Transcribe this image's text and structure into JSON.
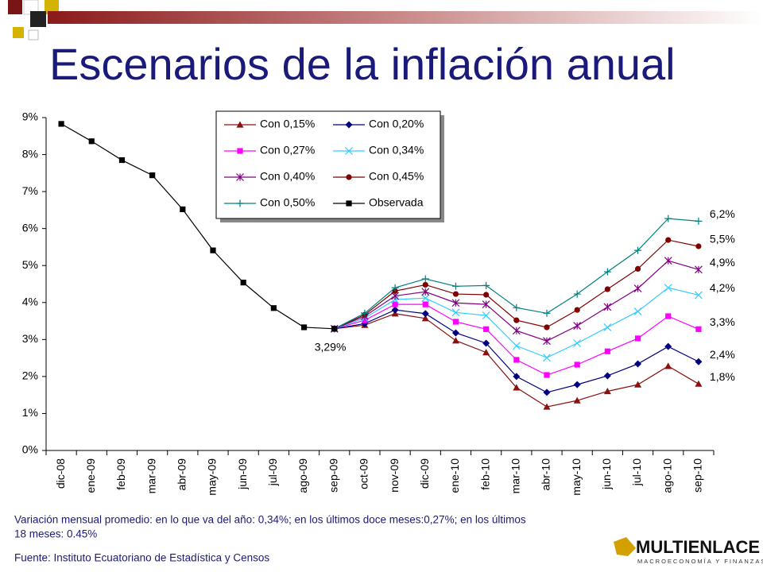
{
  "chart_data": {
    "type": "line",
    "title": "Escenarios de la inflación anual",
    "categories": [
      "dic-08",
      "ene-09",
      "feb-09",
      "mar-09",
      "abr-09",
      "may-09",
      "jun-09",
      "jul-09",
      "ago-09",
      "sep-09",
      "oct-09",
      "nov-09",
      "dic-09",
      "ene-10",
      "feb-10",
      "mar-10",
      "abr-10",
      "may-10",
      "jun-10",
      "jul-10",
      "ago-10",
      "sep-10"
    ],
    "ylim": [
      0,
      9
    ],
    "yticks": [
      {
        "value": 0,
        "label": "0%"
      },
      {
        "value": 1,
        "label": "1%"
      },
      {
        "value": 2,
        "label": "2%"
      },
      {
        "value": 3,
        "label": "3%"
      },
      {
        "value": 4,
        "label": "4%"
      },
      {
        "value": 5,
        "label": "5%"
      },
      {
        "value": 6,
        "label": "6%"
      },
      {
        "value": 7,
        "label": "7%"
      },
      {
        "value": 8,
        "label": "8%"
      },
      {
        "value": 9,
        "label": "9%"
      }
    ],
    "grid": false,
    "series": [
      {
        "name": "Con 0,15%",
        "color": "#8b1010",
        "marker": "triangle",
        "values": [
          null,
          null,
          null,
          null,
          null,
          null,
          null,
          null,
          null,
          3.29,
          3.39,
          3.7,
          3.57,
          2.97,
          2.65,
          1.7,
          1.18,
          1.35,
          1.6,
          1.78,
          2.28,
          1.8
        ],
        "value_labels": [
          null,
          null,
          null,
          null,
          null,
          null,
          null,
          null,
          null,
          null,
          null,
          null,
          null,
          null,
          null,
          null,
          null,
          null,
          null,
          null,
          null,
          "1,8%"
        ]
      },
      {
        "name": "Con 0,20%",
        "color": "#000080",
        "marker": "diamond",
        "values": [
          null,
          null,
          null,
          null,
          null,
          null,
          null,
          null,
          null,
          3.29,
          3.43,
          3.8,
          3.7,
          3.18,
          2.9,
          2.0,
          1.57,
          1.78,
          2.02,
          2.34,
          2.81,
          2.4
        ],
        "value_labels": [
          null,
          null,
          null,
          null,
          null,
          null,
          null,
          null,
          null,
          null,
          null,
          null,
          null,
          null,
          null,
          null,
          null,
          null,
          null,
          null,
          null,
          "2,4%"
        ]
      },
      {
        "name": "Con 0,27%",
        "color": "#ff00ff",
        "marker": "square",
        "values": [
          null,
          null,
          null,
          null,
          null,
          null,
          null,
          null,
          null,
          3.29,
          3.52,
          3.95,
          3.95,
          3.48,
          3.28,
          2.45,
          2.04,
          2.32,
          2.68,
          3.03,
          3.63,
          3.28
        ],
        "value_labels": [
          null,
          null,
          null,
          null,
          null,
          null,
          null,
          null,
          null,
          null,
          null,
          null,
          null,
          null,
          null,
          null,
          null,
          null,
          null,
          null,
          null,
          "3,3%"
        ]
      },
      {
        "name": "Con 0,34%",
        "color": "#33ccff",
        "marker": "x",
        "values": [
          null,
          null,
          null,
          null,
          null,
          null,
          null,
          null,
          null,
          3.29,
          3.58,
          4.08,
          4.12,
          3.73,
          3.65,
          2.83,
          2.51,
          2.9,
          3.33,
          3.76,
          4.4,
          4.2
        ],
        "value_labels": [
          null,
          null,
          null,
          null,
          null,
          null,
          null,
          null,
          null,
          null,
          null,
          null,
          null,
          null,
          null,
          null,
          null,
          null,
          null,
          null,
          null,
          "4,2%"
        ]
      },
      {
        "name": "Con 0,40%",
        "color": "#800080",
        "marker": "star",
        "values": [
          null,
          null,
          null,
          null,
          null,
          null,
          null,
          null,
          null,
          3.29,
          3.63,
          4.18,
          4.29,
          3.99,
          3.95,
          3.24,
          2.96,
          3.37,
          3.88,
          4.38,
          5.13,
          4.89
        ],
        "value_labels": [
          null,
          null,
          null,
          null,
          null,
          null,
          null,
          null,
          null,
          null,
          null,
          null,
          null,
          null,
          null,
          null,
          null,
          null,
          null,
          null,
          null,
          "4,9%"
        ]
      },
      {
        "name": "Con 0,45%",
        "color": "#800000",
        "marker": "circle",
        "values": [
          null,
          null,
          null,
          null,
          null,
          null,
          null,
          null,
          null,
          3.29,
          3.67,
          4.31,
          4.48,
          4.23,
          4.21,
          3.52,
          3.33,
          3.8,
          4.36,
          4.91,
          5.69,
          5.52
        ],
        "value_labels": [
          null,
          null,
          null,
          null,
          null,
          null,
          null,
          null,
          null,
          null,
          null,
          null,
          null,
          null,
          null,
          null,
          null,
          null,
          null,
          null,
          null,
          "5,5%"
        ]
      },
      {
        "name": "Con 0,50%",
        "color": "#008080",
        "marker": "plus",
        "values": [
          null,
          null,
          null,
          null,
          null,
          null,
          null,
          null,
          null,
          3.29,
          3.71,
          4.4,
          4.64,
          4.44,
          4.46,
          3.86,
          3.71,
          4.23,
          4.83,
          5.41,
          6.27,
          6.2
        ],
        "value_labels": [
          null,
          null,
          null,
          null,
          null,
          null,
          null,
          null,
          null,
          null,
          null,
          null,
          null,
          null,
          null,
          null,
          null,
          null,
          null,
          null,
          null,
          "6,2%"
        ]
      },
      {
        "name": "Observada",
        "color": "#000000",
        "marker": "square",
        "values": [
          8.83,
          8.36,
          7.85,
          7.44,
          6.52,
          5.41,
          4.54,
          3.85,
          3.33,
          3.29,
          null,
          null,
          null,
          null,
          null,
          null,
          null,
          null,
          null,
          null,
          null,
          null
        ],
        "value_labels": [
          null,
          null,
          null,
          null,
          null,
          null,
          null,
          null,
          null,
          "3,29%",
          null,
          null,
          null,
          null,
          null,
          null,
          null,
          null,
          null,
          null,
          null,
          null
        ]
      }
    ]
  },
  "notes": [
    "Variación mensual promedio: en lo que va del año: 0,34%; en los últimos doce meses:0,27%; en los últimos",
    "18 meses: 0.45%"
  ],
  "source": "Fuente: Instituto Ecuatoriano de Estadística y Censos",
  "logo": {
    "name": "MULTIENLACE",
    "tagline": "MACROECONOMÍA Y FINANZAS"
  }
}
